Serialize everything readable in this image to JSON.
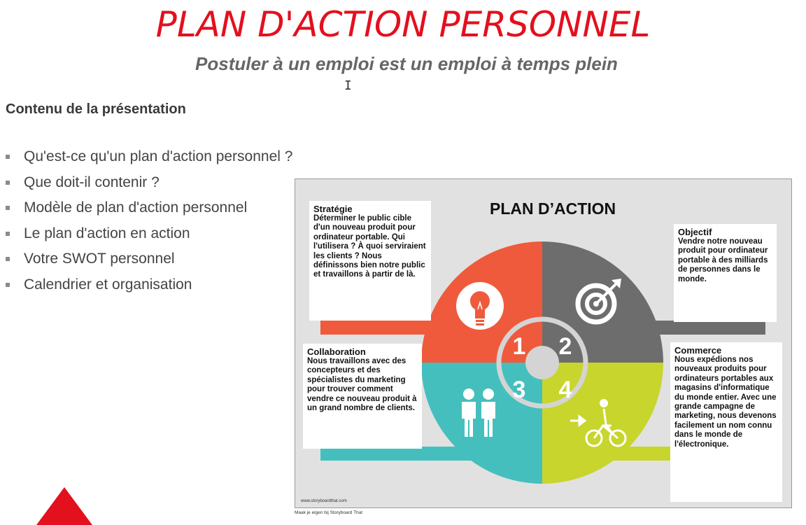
{
  "header": {
    "title": "PLAN D'ACTION PERSONNEL",
    "subtitle": "Postuler à un emploi est un emploi à temps plein"
  },
  "contents": {
    "heading": "Contenu de la présentation",
    "items": [
      "Qu'est-ce qu'un plan d'action personnel ?",
      "Que doit-il contenir ?",
      "Modèle de plan d'action personnel",
      "Le plan d'action en action",
      "Votre SWOT personnel",
      "Calendrier et organisation"
    ]
  },
  "infographic": {
    "title": "PLAN D’ACTION",
    "numbers": [
      "1",
      "2",
      "3",
      "4"
    ],
    "colors": {
      "strategy": "#ef5a3c",
      "objective": "#6d6d6d",
      "collaboration": "#45bfbd",
      "commerce": "#c8d52c",
      "background": "#e1e1e1"
    },
    "icons": {
      "strategy": "lightbulb-icon",
      "objective": "target-icon",
      "collaboration": "people-icon",
      "commerce": "cyclist-icon"
    },
    "boxes": {
      "strategy": {
        "heading": "Stratégie",
        "text": "Déterminer le public cible d'un nouveau produit pour ordinateur portable. Qui l'utilisera ? À quoi serviraient les clients ? Nous définissons bien notre public et travaillons à partir de là."
      },
      "objective": {
        "heading": "Objectif",
        "text": "Vendre notre nouveau produit pour ordinateur portable à des milliards de personnes dans le monde."
      },
      "collaboration": {
        "heading": "Collaboration",
        "text": "Nous travaillons avec des concepteurs et des spécialistes du marketing pour trouver comment vendre ce nouveau produit à un grand nombre de clients."
      },
      "commerce": {
        "heading": "Commerce",
        "text": "Nous expédions nos nouveaux produits pour ordinateurs portables aux magasins d'informatique du monde entier. Avec une grande campagne de marketing, nous devenons facilement un nom connu dans le monde de l'électronique."
      }
    },
    "credit": "www.storyboardthat.com",
    "caption": "Maak je eigen bij Storyboard That"
  }
}
